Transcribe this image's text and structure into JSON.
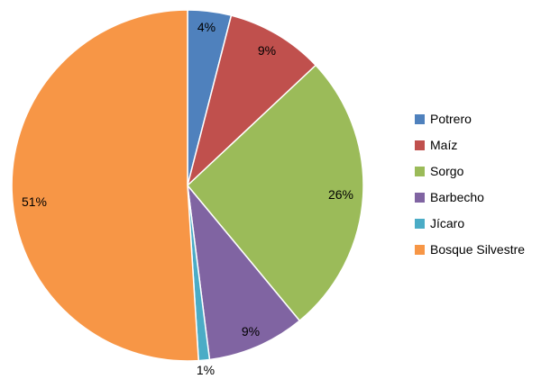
{
  "chart_data": {
    "type": "pie",
    "title": "",
    "categories": [
      "Potrero",
      "Maíz",
      "Sorgo",
      "Barbecho",
      "Jícaro",
      "Bosque Silvestre"
    ],
    "values": [
      4,
      9,
      26,
      9,
      1,
      51
    ],
    "data_labels": [
      "4%",
      "9%",
      "26%",
      "9%",
      "1%",
      "51%"
    ],
    "colors": [
      "#4F81BD",
      "#C0504D",
      "#9BBB59",
      "#8064A2",
      "#4BACC6",
      "#F79646"
    ],
    "start_angle_deg": 0,
    "direction": "clockwise",
    "legend_position": "right"
  }
}
